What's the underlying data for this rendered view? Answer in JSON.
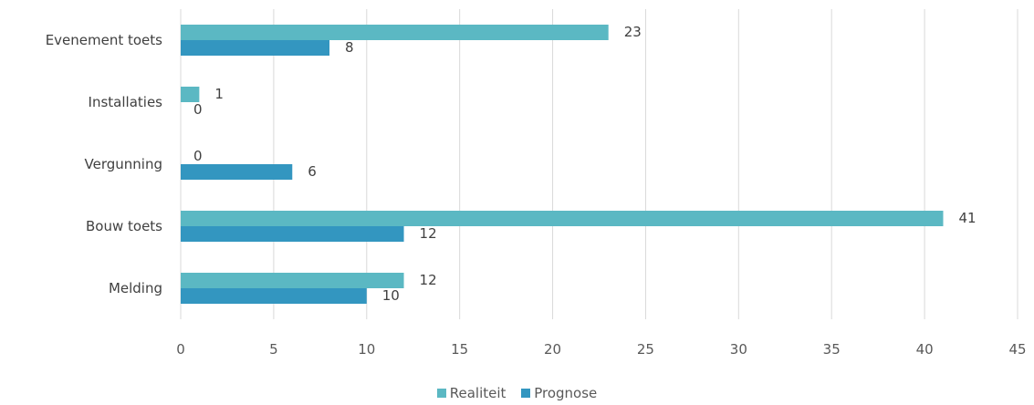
{
  "chart_data": {
    "type": "bar",
    "orientation": "horizontal",
    "categories": [
      "Evenement toets",
      "Installaties",
      "Vergunning",
      "Bouw toets",
      "Melding"
    ],
    "series": [
      {
        "name": "Realiteit",
        "color": "#5bb8c3",
        "values": [
          23,
          1,
          0,
          41,
          12
        ]
      },
      {
        "name": "Prognose",
        "color": "#3396c0",
        "values": [
          8,
          0,
          6,
          12,
          10
        ]
      }
    ],
    "xticks": [
      0,
      5,
      10,
      15,
      20,
      25,
      30,
      35,
      40,
      45
    ],
    "xlim": [
      0,
      45
    ],
    "grid": true,
    "legend_position": "bottom",
    "data_labels": true
  }
}
